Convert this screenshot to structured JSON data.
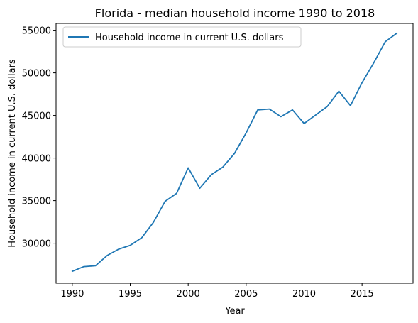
{
  "chart_data": {
    "type": "line",
    "title": "Florida - median household income 1990 to 2018",
    "xlabel": "Year",
    "ylabel": "Household income in current U.S. dollars",
    "xlim": [
      1988.6,
      2019.4
    ],
    "ylim": [
      25300,
      55800
    ],
    "xticks": [
      1990,
      1995,
      2000,
      2005,
      2010,
      2015
    ],
    "yticks": [
      30000,
      35000,
      40000,
      45000,
      50000,
      55000
    ],
    "grid": false,
    "legend_position": "upper-left",
    "series": [
      {
        "name": "Household income in current U.S. dollars",
        "color": "#1f77b4",
        "x": [
          1990,
          1991,
          1992,
          1993,
          1994,
          1995,
          1996,
          1997,
          1998,
          1999,
          2000,
          2001,
          2002,
          2003,
          2004,
          2005,
          2006,
          2007,
          2008,
          2009,
          2010,
          2011,
          2012,
          2013,
          2014,
          2015,
          2016,
          2017,
          2018
        ],
        "y": [
          26700,
          27250,
          27350,
          28550,
          29300,
          29750,
          30650,
          32450,
          34900,
          35850,
          38850,
          36450,
          38050,
          38950,
          40550,
          42950,
          45650,
          45750,
          44850,
          45650,
          44050,
          45050,
          46050,
          47850,
          46150,
          48850,
          51150,
          53650,
          54650
        ]
      }
    ]
  }
}
